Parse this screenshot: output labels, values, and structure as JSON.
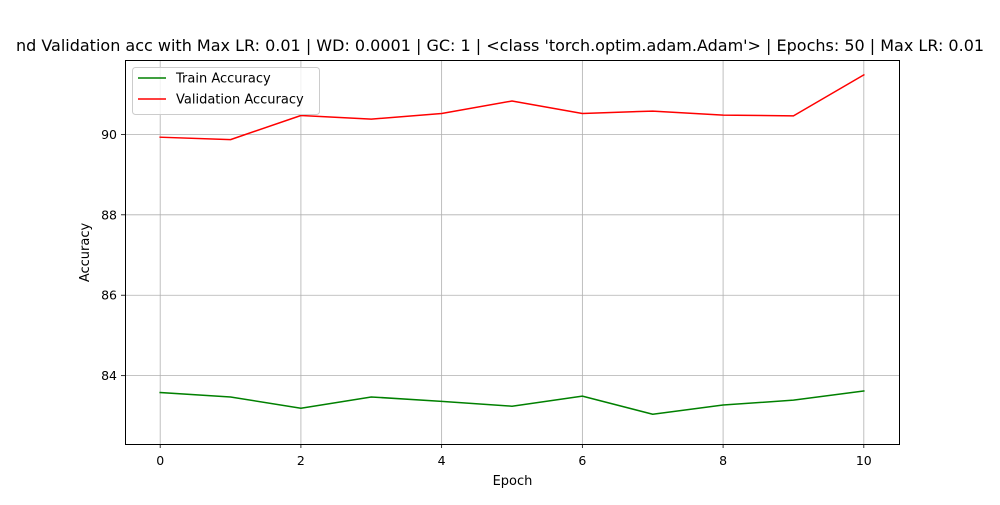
{
  "chart_data": {
    "type": "line",
    "title": "nd Validation acc with Max LR: 0.01 | WD: 0.0001 | GC: 1 | <class 'torch.optim.adam.Adam'> | Epochs: 50 | Max LR: 0.01",
    "xlabel": "Epoch",
    "ylabel": "Accuracy",
    "x": [
      0,
      1,
      2,
      3,
      4,
      5,
      6,
      7,
      8,
      9,
      10
    ],
    "xlim": [
      -0.5,
      10.5
    ],
    "ylim": [
      82.3,
      91.85
    ],
    "xticks": [
      0,
      2,
      4,
      6,
      8,
      10
    ],
    "yticks": [
      84,
      86,
      88,
      90
    ],
    "grid": true,
    "legend_position": "top-left",
    "series": [
      {
        "name": "Train Accuracy",
        "color": "#008000",
        "values": [
          83.58,
          83.47,
          83.19,
          83.47,
          83.36,
          83.24,
          83.49,
          83.04,
          83.27,
          83.39,
          83.62
        ]
      },
      {
        "name": "Validation Accuracy",
        "color": "#ff0000",
        "values": [
          89.93,
          89.87,
          90.47,
          90.38,
          90.52,
          90.83,
          90.52,
          90.58,
          90.48,
          90.46,
          91.48
        ]
      }
    ]
  }
}
